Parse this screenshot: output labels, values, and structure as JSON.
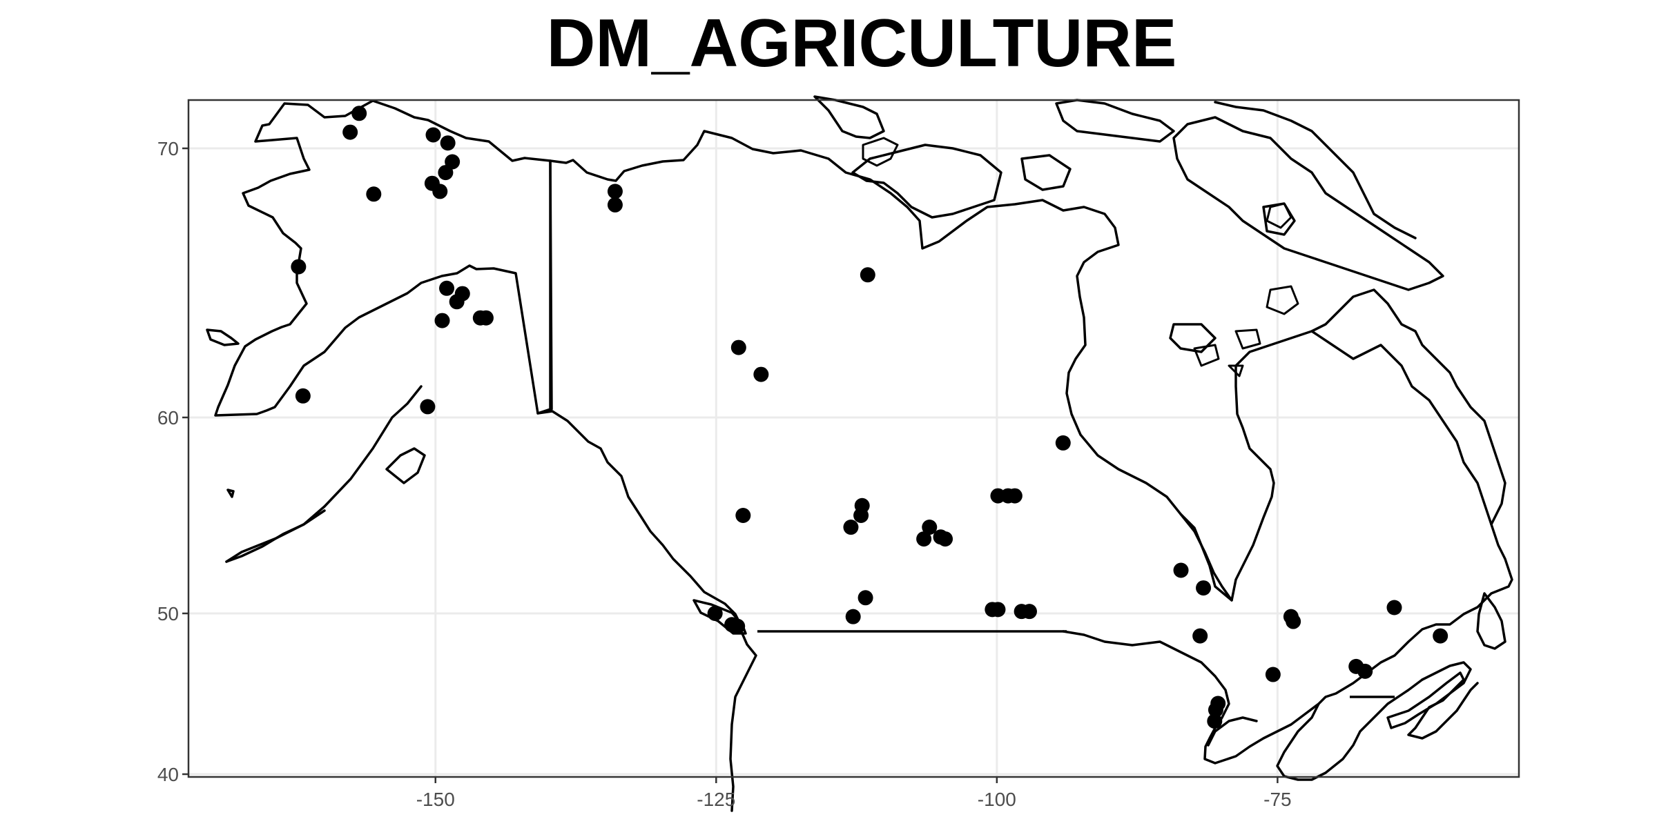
{
  "title": "DM_AGRICULTURE",
  "map": {
    "lon_range": [
      -172,
      -53.5
    ],
    "lat_range": [
      39.8,
      71.8
    ],
    "x_ticks": [
      {
        "value": -150,
        "label": "-150"
      },
      {
        "value": -125,
        "label": "-125"
      },
      {
        "value": -100,
        "label": "-100"
      },
      {
        "value": -75,
        "label": "-75"
      }
    ],
    "y_ticks": [
      {
        "value": 70,
        "label": "70"
      },
      {
        "value": 60,
        "label": "60"
      },
      {
        "value": 50,
        "label": "50"
      },
      {
        "value": 40,
        "label": "40"
      }
    ],
    "grid": true,
    "point_color": "#000000",
    "line_color": "#000000",
    "points": [
      [
        -156.8,
        71.3
      ],
      [
        -157.6,
        70.6
      ],
      [
        -150.2,
        70.5
      ],
      [
        -148.9,
        70.2
      ],
      [
        -148.5,
        69.5
      ],
      [
        -149.1,
        69.1
      ],
      [
        -150.3,
        68.7
      ],
      [
        -149.6,
        68.4
      ],
      [
        -155.5,
        68.3
      ],
      [
        -134.0,
        68.4
      ],
      [
        -134.0,
        67.9
      ],
      [
        -162.2,
        65.6
      ],
      [
        -149.0,
        64.8
      ],
      [
        -147.6,
        64.6
      ],
      [
        -148.1,
        64.3
      ],
      [
        -146.0,
        63.7
      ],
      [
        -145.5,
        63.7
      ],
      [
        -149.4,
        63.6
      ],
      [
        -161.8,
        60.8
      ],
      [
        -150.7,
        60.4
      ],
      [
        -123.0,
        62.6
      ],
      [
        -121.0,
        61.6
      ],
      [
        -111.5,
        65.3
      ],
      [
        -122.6,
        55.0
      ],
      [
        -112.0,
        55.5
      ],
      [
        -112.1,
        55.0
      ],
      [
        -113.0,
        54.4
      ],
      [
        -106.0,
        54.4
      ],
      [
        -106.5,
        53.8
      ],
      [
        -105.0,
        53.9
      ],
      [
        -104.6,
        53.8
      ],
      [
        -99.9,
        56.0
      ],
      [
        -99.0,
        56.0
      ],
      [
        -98.4,
        56.0
      ],
      [
        -94.1,
        58.7
      ],
      [
        -111.7,
        50.8
      ],
      [
        -112.8,
        49.8
      ],
      [
        -100.4,
        50.2
      ],
      [
        -99.9,
        50.2
      ],
      [
        -97.8,
        50.1
      ],
      [
        -97.1,
        50.1
      ],
      [
        -125.1,
        50.0
      ],
      [
        -123.6,
        49.3
      ],
      [
        -123.1,
        49.2
      ],
      [
        -83.6,
        52.2
      ],
      [
        -81.6,
        51.3
      ],
      [
        -81.9,
        48.6
      ],
      [
        -80.3,
        44.4
      ],
      [
        -80.5,
        44.0
      ],
      [
        -80.6,
        43.3
      ],
      [
        -75.4,
        46.2
      ],
      [
        -73.8,
        49.8
      ],
      [
        -73.6,
        49.5
      ],
      [
        -68.0,
        46.7
      ],
      [
        -67.2,
        46.4
      ],
      [
        -64.6,
        50.3
      ],
      [
        -60.5,
        48.6
      ]
    ]
  }
}
